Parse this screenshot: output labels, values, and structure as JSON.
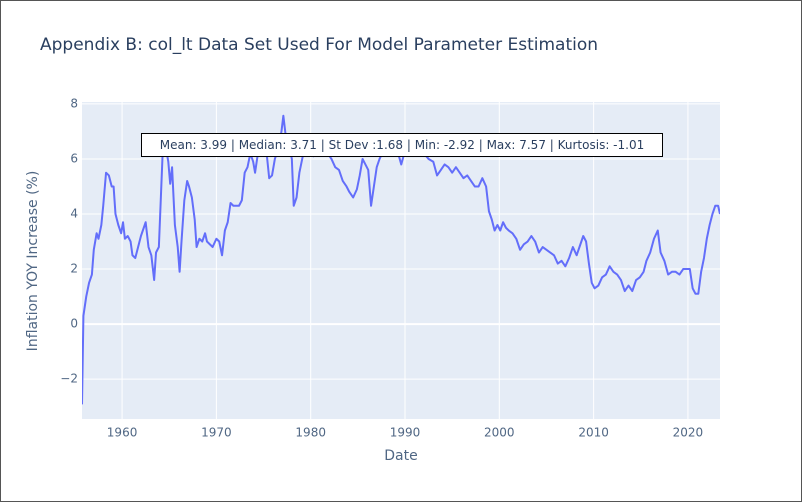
{
  "chart_data": {
    "type": "line",
    "title": "Appendix B: col_lt Data Set Used For Model Parameter Estimation",
    "x_label": "Date",
    "y_label": "Inflation YOY Increase (%)",
    "annotation": "Mean: 3.99 | Median: 3.71 | St Dev :1.68 | Min: -2.92 | Max: 7.57 | Kurtosis: -1.01",
    "color": "#636efa",
    "grid": true,
    "xlim": [
      1955.75,
      2023.4
    ],
    "xticks": [
      1960,
      1970,
      1980,
      1990,
      2000,
      2010,
      2020
    ],
    "ylim": [
      -3.45,
      8.07
    ],
    "yticks": [
      {
        "value": -2,
        "label": "−2"
      },
      0,
      2,
      4,
      6,
      8
    ],
    "x": [
      1955.75,
      1955.9,
      1956.2,
      1956.5,
      1956.8,
      1957.0,
      1957.3,
      1957.5,
      1957.8,
      1958.0,
      1958.3,
      1958.6,
      1958.9,
      1959.1,
      1959.3,
      1959.6,
      1959.9,
      1960.1,
      1960.3,
      1960.6,
      1960.9,
      1961.1,
      1961.4,
      1961.7,
      1962.0,
      1962.3,
      1962.5,
      1962.8,
      1963.1,
      1963.4,
      1963.6,
      1963.9,
      1964.1,
      1964.3,
      1964.6,
      1964.9,
      1965.1,
      1965.3,
      1965.6,
      1965.9,
      1966.1,
      1966.3,
      1966.6,
      1966.9,
      1967.1,
      1967.4,
      1967.7,
      1967.9,
      1968.2,
      1968.5,
      1968.8,
      1969.0,
      1969.3,
      1969.6,
      1970.0,
      1970.3,
      1970.6,
      1970.9,
      1971.2,
      1971.5,
      1971.8,
      1972.1,
      1972.4,
      1972.7,
      1973.0,
      1973.3,
      1973.6,
      1973.9,
      1974.1,
      1974.4,
      1974.7,
      1975.0,
      1975.3,
      1975.6,
      1975.9,
      1976.2,
      1976.5,
      1976.9,
      1977.1,
      1977.4,
      1977.7,
      1978.0,
      1978.2,
      1978.5,
      1978.8,
      1979.1,
      1979.4,
      1979.7,
      1980.0,
      1980.3,
      1980.6,
      1980.9,
      1981.2,
      1981.5,
      1981.8,
      1982.2,
      1982.6,
      1983.0,
      1983.4,
      1983.8,
      1984.1,
      1984.5,
      1984.9,
      1985.2,
      1985.5,
      1985.8,
      1986.1,
      1986.4,
      1986.7,
      1987.0,
      1987.3,
      1987.7,
      1988.0,
      1988.4,
      1988.8,
      1989.2,
      1989.6,
      1990.0,
      1990.5,
      1991.0,
      1991.5,
      1992.0,
      1992.5,
      1993.0,
      1993.4,
      1993.8,
      1994.2,
      1994.6,
      1995.0,
      1995.4,
      1995.8,
      1996.2,
      1996.6,
      1997.0,
      1997.4,
      1997.8,
      1998.2,
      1998.6,
      1998.9,
      1999.2,
      1999.5,
      1999.8,
      2000.1,
      2000.4,
      2000.7,
      2001.0,
      2001.4,
      2001.8,
      2002.2,
      2002.6,
      2003.0,
      2003.4,
      2003.8,
      2004.2,
      2004.6,
      2005.0,
      2005.4,
      2005.8,
      2006.2,
      2006.6,
      2007.0,
      2007.4,
      2007.8,
      2008.2,
      2008.6,
      2008.9,
      2009.2,
      2009.5,
      2009.8,
      2010.1,
      2010.5,
      2010.9,
      2011.3,
      2011.7,
      2012.1,
      2012.5,
      2012.9,
      2013.3,
      2013.7,
      2014.1,
      2014.5,
      2014.9,
      2015.3,
      2015.6,
      2016.0,
      2016.4,
      2016.8,
      2017.1,
      2017.5,
      2017.9,
      2018.3,
      2018.7,
      2019.1,
      2019.5,
      2019.9,
      2020.2,
      2020.5,
      2020.8,
      2021.1,
      2021.4,
      2021.7,
      2022.0,
      2022.3,
      2022.6,
      2022.9,
      2023.2,
      2023.4
    ],
    "values": [
      -2.92,
      0.3,
      1.0,
      1.5,
      1.8,
      2.7,
      3.3,
      3.1,
      3.6,
      4.3,
      5.5,
      5.4,
      5.0,
      5.0,
      4.0,
      3.6,
      3.3,
      3.7,
      3.1,
      3.2,
      3.0,
      2.5,
      2.4,
      2.8,
      3.2,
      3.5,
      3.7,
      2.8,
      2.5,
      1.6,
      2.6,
      2.8,
      4.5,
      6.2,
      6.5,
      5.9,
      5.1,
      5.7,
      3.6,
      2.8,
      1.9,
      3.0,
      4.5,
      5.2,
      5.0,
      4.6,
      3.8,
      2.8,
      3.1,
      3.0,
      3.3,
      3.0,
      2.9,
      2.8,
      3.1,
      3.0,
      2.5,
      3.4,
      3.7,
      4.4,
      4.3,
      4.3,
      4.3,
      4.5,
      5.5,
      5.7,
      6.2,
      5.9,
      5.5,
      6.2,
      6.4,
      6.6,
      6.3,
      5.3,
      5.4,
      6.0,
      6.3,
      7.0,
      7.57,
      6.7,
      6.5,
      6.0,
      4.3,
      4.6,
      5.5,
      6.0,
      6.5,
      6.2,
      6.6,
      6.1,
      6.3,
      6.6,
      6.2,
      6.4,
      6.2,
      6.0,
      5.7,
      5.6,
      5.2,
      5.0,
      4.8,
      4.6,
      4.9,
      5.4,
      6.0,
      5.8,
      5.6,
      4.3,
      5.0,
      5.7,
      6.0,
      6.3,
      6.6,
      6.4,
      6.4,
      6.3,
      5.8,
      6.3,
      6.6,
      6.5,
      6.4,
      6.2,
      6.0,
      5.9,
      5.4,
      5.6,
      5.8,
      5.7,
      5.5,
      5.7,
      5.5,
      5.3,
      5.4,
      5.2,
      5.0,
      5.0,
      5.3,
      5.0,
      4.1,
      3.8,
      3.4,
      3.6,
      3.4,
      3.7,
      3.5,
      3.4,
      3.3,
      3.1,
      2.7,
      2.9,
      3.0,
      3.2,
      3.0,
      2.6,
      2.8,
      2.7,
      2.6,
      2.5,
      2.2,
      2.3,
      2.1,
      2.4,
      2.8,
      2.5,
      2.9,
      3.2,
      3.0,
      2.2,
      1.5,
      1.3,
      1.4,
      1.7,
      1.8,
      2.1,
      1.9,
      1.8,
      1.6,
      1.2,
      1.4,
      1.2,
      1.6,
      1.7,
      1.9,
      2.3,
      2.6,
      3.1,
      3.4,
      2.6,
      2.3,
      1.8,
      1.9,
      1.9,
      1.8,
      2.0,
      2.0,
      2.0,
      1.3,
      1.1,
      1.1,
      1.9,
      2.4,
      3.1,
      3.6,
      4.0,
      4.3,
      4.3,
      4.0
    ]
  }
}
